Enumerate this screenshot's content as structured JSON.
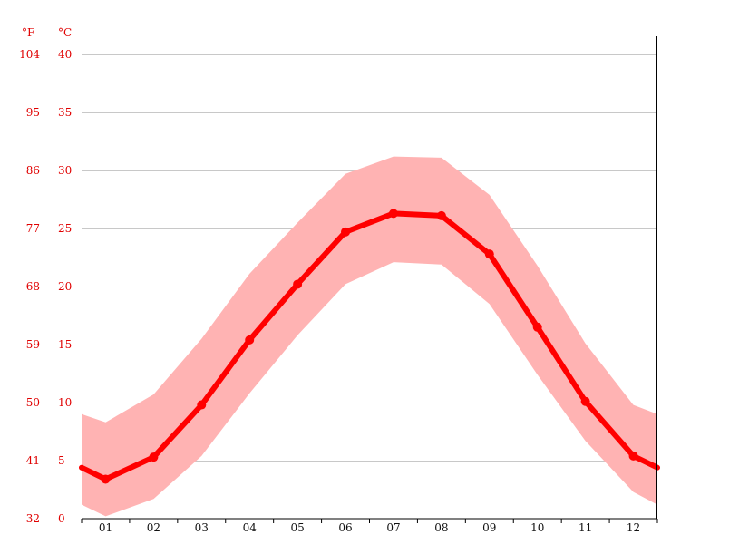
{
  "chart_data": {
    "type": "line",
    "unit_f": "°F",
    "unit_c": "°C",
    "categories": [
      "01",
      "02",
      "03",
      "04",
      "05",
      "06",
      "07",
      "08",
      "09",
      "10",
      "11",
      "12"
    ],
    "y_ticks_c": [
      0,
      5,
      10,
      15,
      20,
      25,
      30,
      35,
      40
    ],
    "y_ticks_f": [
      "32",
      "41",
      "50",
      "59",
      "68",
      "77",
      "86",
      "95",
      "104"
    ],
    "ylim": [
      0,
      40
    ],
    "grid": true,
    "mean": [
      3.4,
      5.3,
      9.8,
      15.4,
      20.2,
      24.7,
      26.3,
      26.1,
      22.8,
      16.5,
      10.1,
      5.4
    ],
    "max": [
      8.3,
      10.7,
      15.5,
      21.1,
      25.5,
      29.7,
      31.2,
      31.1,
      27.9,
      21.8,
      15.1,
      9.8
    ],
    "min": [
      0.2,
      1.7,
      5.4,
      10.8,
      15.8,
      20.2,
      22.1,
      21.9,
      18.5,
      12.4,
      6.7,
      2.3
    ],
    "edge_left": {
      "mean": 4.4,
      "max": 9.0,
      "min": 1.2
    },
    "edge_right": {
      "mean": 4.4,
      "max": 9.0,
      "min": 1.2
    },
    "colors": {
      "mean_line": "#ff0000",
      "range_band": "#ffb3b3",
      "grid": "#c8c8c8",
      "tick_text": "#e00000"
    }
  }
}
